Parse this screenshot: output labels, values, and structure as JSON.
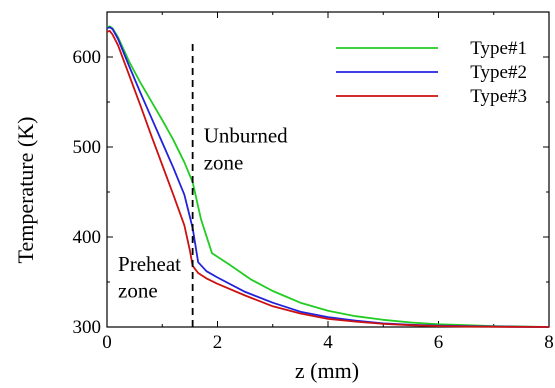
{
  "chart_data": {
    "type": "line",
    "xlabel": "z (mm)",
    "ylabel": "Temperature (K)",
    "xlim": [
      0,
      8
    ],
    "ylim": [
      300,
      650
    ],
    "xticks": [
      0,
      2,
      4,
      6,
      8
    ],
    "yticks": [
      300,
      400,
      500,
      600
    ],
    "legend_position": "top-right",
    "grid": false,
    "vline": {
      "x": 1.55,
      "style": "dashed"
    },
    "annotations": [
      {
        "text": "Unburned",
        "x": 1.75,
        "y": 505
      },
      {
        "text": "zone",
        "x": 1.75,
        "y": 475
      },
      {
        "text": "Preheat",
        "x": 0.2,
        "y": 362
      },
      {
        "text": "zone",
        "x": 0.2,
        "y": 333
      }
    ],
    "series": [
      {
        "name": "Type#1",
        "color": "#22cc22",
        "x": [
          0,
          0.05,
          0.1,
          0.2,
          0.4,
          0.6,
          0.8,
          1.0,
          1.2,
          1.4,
          1.55,
          1.7,
          1.9,
          2.2,
          2.6,
          3.0,
          3.5,
          4.0,
          4.5,
          5.0,
          5.5,
          6.0,
          6.5,
          7.0,
          7.5,
          8.0
        ],
        "y": [
          633,
          634,
          632,
          622,
          595,
          572,
          551,
          530,
          508,
          483,
          461,
          420,
          382,
          370,
          353,
          340,
          327,
          318,
          312,
          308,
          305,
          303,
          302,
          301,
          300.5,
          300
        ]
      },
      {
        "name": "Type#2",
        "color": "#2222dd",
        "x": [
          0,
          0.05,
          0.1,
          0.2,
          0.4,
          0.6,
          0.8,
          1.0,
          1.2,
          1.4,
          1.55,
          1.65,
          1.8,
          2.0,
          2.5,
          3.0,
          3.5,
          4.0,
          4.5,
          5.0,
          5.5,
          6.0,
          6.5,
          7.0,
          7.5,
          8.0
        ],
        "y": [
          632,
          633,
          631,
          620,
          590,
          561,
          533,
          505,
          477,
          447,
          410,
          372,
          362,
          355,
          339,
          327,
          317,
          311,
          307,
          304,
          302.5,
          301.5,
          301,
          300.5,
          300.2,
          300
        ]
      },
      {
        "name": "Type#3",
        "color": "#cc1111",
        "x": [
          0,
          0.05,
          0.1,
          0.2,
          0.4,
          0.6,
          0.8,
          1.0,
          1.2,
          1.4,
          1.5,
          1.55,
          1.65,
          1.8,
          2.0,
          2.5,
          3.0,
          3.5,
          4.0,
          4.5,
          5.0,
          5.5,
          6.0,
          6.5,
          7.0,
          7.5,
          8.0
        ],
        "y": [
          628,
          629,
          625,
          613,
          580,
          547,
          513,
          480,
          447,
          413,
          385,
          368,
          360,
          354,
          348,
          335,
          323,
          315,
          309,
          306,
          303.5,
          302,
          301,
          300.5,
          300.3,
          300.1,
          300
        ]
      }
    ]
  }
}
